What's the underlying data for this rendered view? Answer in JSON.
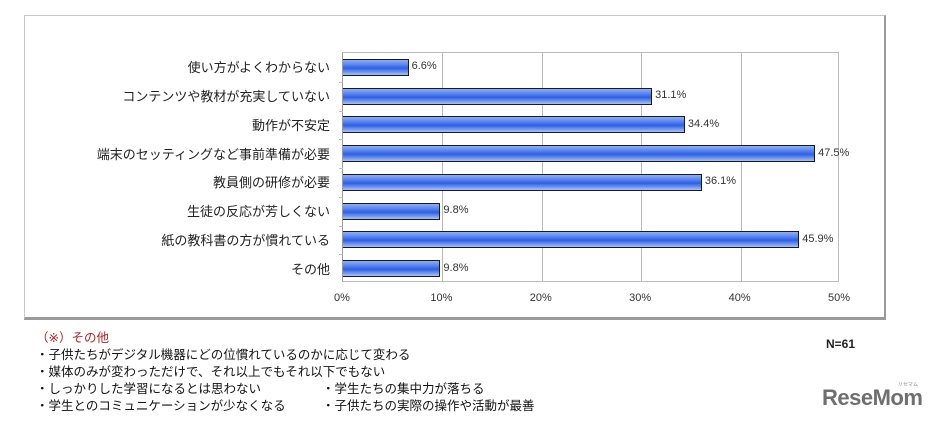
{
  "chart_data": {
    "type": "bar",
    "orientation": "horizontal",
    "title": "",
    "xlabel": "",
    "ylabel": "",
    "xlim": [
      0,
      50
    ],
    "grid": true,
    "x_ticks": [
      "0%",
      "10%",
      "20%",
      "30%",
      "40%",
      "50%"
    ],
    "categories": [
      "使い方がよくわからない",
      "コンテンツや教材が充実していない",
      "動作が不安定",
      "端末のセッティングなど事前準備が必要",
      "教員側の研修が必要",
      "生徒の反応が芳しくない",
      "紙の教科書の方が慣れている",
      "その他"
    ],
    "values": [
      6.6,
      31.1,
      34.4,
      47.5,
      36.1,
      9.8,
      45.9,
      9.8
    ],
    "value_labels": [
      "6.6%",
      "31.1%",
      "34.4%",
      "47.5%",
      "36.1%",
      "9.8%",
      "45.9%",
      "9.8%"
    ],
    "sample_size": "N=61",
    "bar_color": "#2e5fe6"
  },
  "notes": {
    "title": "（※）その他",
    "lines": [
      "・子供たちがデジタル機器にどの位慣れているのかに応じて変わる",
      "・媒体のみが変わっただけで、それ以上でもそれ以下でもない"
    ],
    "pairs": [
      [
        "・しっかりした学習になるとは思わない",
        "・学生たちの集中力が落ちる"
      ],
      [
        "・学生とのコミュニケーションが少なくなる",
        "・子供たちの実際の操作や活動が最善"
      ]
    ]
  },
  "n_label": "N=61",
  "logo": {
    "text": "ReseMom",
    "sub": "リセマム"
  }
}
